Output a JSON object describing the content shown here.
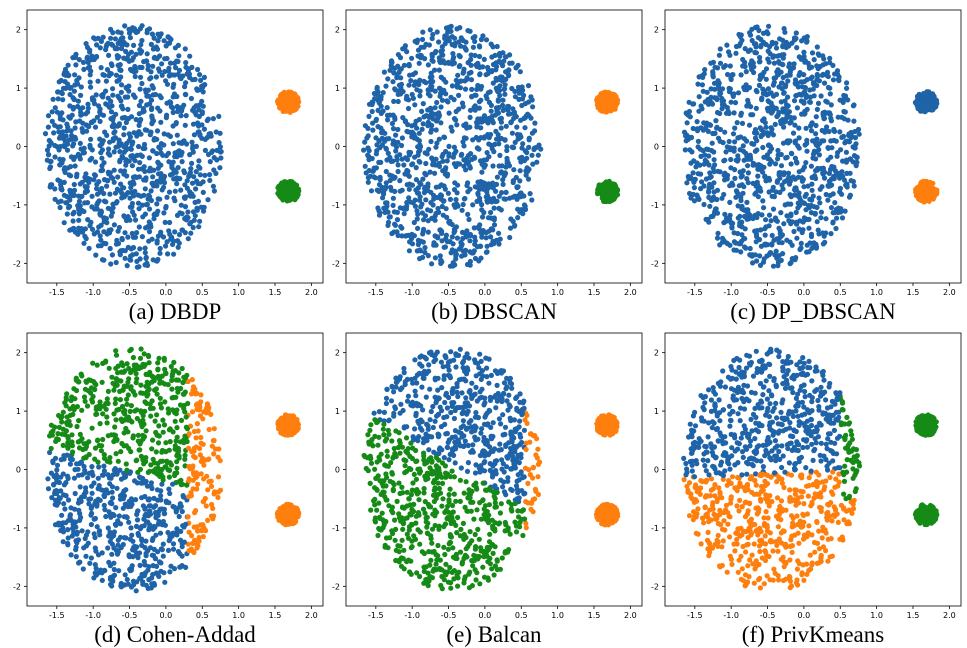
{
  "colors": {
    "blue": "#1f63a8",
    "orange": "#ff7f0e",
    "green": "#168a16"
  },
  "chart_data": [
    {
      "type": "scatter",
      "caption": "(a) DBDP",
      "xlim": [
        -1.8,
        2.05
      ],
      "ylim": [
        -2.2,
        2.2
      ],
      "xticks": [
        "-1.5",
        "-1.0",
        "-0.5",
        "0.0",
        "0.5",
        "1.0",
        "1.5",
        "2.0"
      ],
      "yticks": [
        "2",
        "1",
        "0",
        "-1",
        "-2"
      ],
      "clusters": [
        {
          "shape": "ellipse",
          "cx": -0.45,
          "cy": 0.0,
          "rx": 1.22,
          "ry": 2.08,
          "color": "blue",
          "n": 1100
        },
        {
          "shape": "disk",
          "cx": 1.68,
          "cy": 0.76,
          "r": 0.15,
          "color": "orange",
          "n": 160
        },
        {
          "shape": "disk",
          "cx": 1.68,
          "cy": -0.77,
          "r": 0.15,
          "color": "green",
          "n": 160
        }
      ]
    },
    {
      "type": "scatter",
      "caption": "(b) DBSCAN",
      "xlim": [
        -1.8,
        2.05
      ],
      "ylim": [
        -2.2,
        2.2
      ],
      "xticks": [
        "-1.5",
        "-1.0",
        "-0.5",
        "0.0",
        "0.5",
        "1.0",
        "1.5",
        "2.0"
      ],
      "yticks": [
        "2",
        "1",
        "0",
        "-1",
        "-2"
      ],
      "clusters": [
        {
          "shape": "ellipse",
          "cx": -0.45,
          "cy": 0.0,
          "rx": 1.22,
          "ry": 2.08,
          "color": "blue",
          "n": 1100
        },
        {
          "shape": "disk",
          "cx": 1.68,
          "cy": 0.76,
          "r": 0.15,
          "color": "orange",
          "n": 160
        },
        {
          "shape": "disk",
          "cx": 1.68,
          "cy": -0.77,
          "r": 0.15,
          "color": "green",
          "n": 160
        }
      ]
    },
    {
      "type": "scatter",
      "caption": "(c) DP_DBSCAN",
      "xlim": [
        -1.8,
        2.05
      ],
      "ylim": [
        -2.2,
        2.2
      ],
      "xticks": [
        "-1.5",
        "-1.0",
        "-0.5",
        "0.0",
        "0.5",
        "1.0",
        "1.5",
        "2.0"
      ],
      "yticks": [
        "2",
        "1",
        "0",
        "-1",
        "-2"
      ],
      "clusters": [
        {
          "shape": "ellipse",
          "cx": -0.45,
          "cy": 0.0,
          "rx": 1.22,
          "ry": 2.08,
          "color": "blue",
          "n": 1100
        },
        {
          "shape": "disk",
          "cx": 1.68,
          "cy": 0.76,
          "r": 0.15,
          "color": "blue",
          "n": 160
        },
        {
          "shape": "disk",
          "cx": 1.68,
          "cy": -0.77,
          "r": 0.15,
          "color": "orange",
          "n": 160
        }
      ]
    },
    {
      "type": "scatter",
      "caption": "(d) Cohen-Addad",
      "xlim": [
        -1.8,
        2.05
      ],
      "ylim": [
        -2.2,
        2.2
      ],
      "xticks": [
        "-1.5",
        "-1.0",
        "-0.5",
        "0.0",
        "0.5",
        "1.0",
        "1.5",
        "2.0"
      ],
      "yticks": [
        "2",
        "1",
        "0",
        "-1",
        "-2"
      ],
      "clusters": [
        {
          "shape": "ellipse",
          "cx": -0.45,
          "cy": 0.0,
          "rx": 1.22,
          "ry": 2.08,
          "color": "blue",
          "n": 1100,
          "regions": [
            {
              "color": "orange",
              "rule": "x>0.3"
            },
            {
              "color": "green",
              "rule": "y>0.35-0.33*(x+1.67)"
            },
            {
              "color": "blue",
              "rule": "else"
            }
          ]
        },
        {
          "shape": "disk",
          "cx": 1.68,
          "cy": 0.76,
          "r": 0.15,
          "color": "orange",
          "n": 160
        },
        {
          "shape": "disk",
          "cx": 1.68,
          "cy": -0.77,
          "r": 0.15,
          "color": "orange",
          "n": 160
        }
      ]
    },
    {
      "type": "scatter",
      "caption": "(e) Balcan",
      "xlim": [
        -1.8,
        2.05
      ],
      "ylim": [
        -2.2,
        2.2
      ],
      "xticks": [
        "-1.5",
        "-1.0",
        "-0.5",
        "0.0",
        "0.5",
        "1.0",
        "1.5",
        "2.0"
      ],
      "yticks": [
        "2",
        "1",
        "0",
        "-1",
        "-2"
      ],
      "clusters": [
        {
          "shape": "ellipse",
          "cx": -0.45,
          "cy": 0.0,
          "rx": 1.22,
          "ry": 2.08,
          "color": "blue",
          "n": 1100,
          "regions": [
            {
              "color": "orange",
              "rule": "x>0.55"
            },
            {
              "color": "green",
              "rule": "y<0.95-0.75*(x+1.6)"
            },
            {
              "color": "blue",
              "rule": "else"
            }
          ]
        },
        {
          "shape": "disk",
          "cx": 1.68,
          "cy": 0.76,
          "r": 0.15,
          "color": "orange",
          "n": 160
        },
        {
          "shape": "disk",
          "cx": 1.68,
          "cy": -0.77,
          "r": 0.15,
          "color": "orange",
          "n": 160
        }
      ]
    },
    {
      "type": "scatter",
      "caption": "(f) PrivKmeans",
      "xlim": [
        -1.8,
        2.05
      ],
      "ylim": [
        -2.2,
        2.2
      ],
      "xticks": [
        "-1.5",
        "-1.0",
        "-0.5",
        "0.0",
        "0.5",
        "1.0",
        "1.5",
        "2.0"
      ],
      "yticks": [
        "2",
        "1",
        "0",
        "-1",
        "-2"
      ],
      "clusters": [
        {
          "shape": "ellipse",
          "cx": -0.45,
          "cy": 0.0,
          "rx": 1.22,
          "ry": 2.08,
          "color": "blue",
          "n": 1100,
          "regions": [
            {
              "color": "green",
              "rule": "x>0.5 && y>-0.5"
            },
            {
              "color": "orange",
              "rule": "y<-0.05+0.05*x"
            },
            {
              "color": "blue",
              "rule": "else"
            }
          ]
        },
        {
          "shape": "disk",
          "cx": 1.68,
          "cy": 0.76,
          "r": 0.15,
          "color": "green",
          "n": 160
        },
        {
          "shape": "disk",
          "cx": 1.68,
          "cy": -0.77,
          "r": 0.15,
          "color": "green",
          "n": 160
        }
      ]
    }
  ]
}
